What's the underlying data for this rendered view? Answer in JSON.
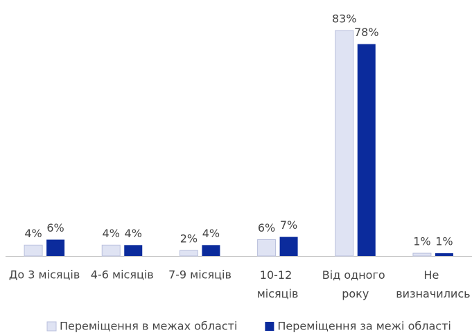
{
  "chart_data": {
    "type": "bar",
    "categories": [
      "До 3 місяців",
      "4-6 місяців",
      "7-9 місяців",
      "10-12 місяців",
      "Від одного року",
      "Не визначились"
    ],
    "series": [
      {
        "name": "Переміщення в межах області",
        "color": "#dfe3f3",
        "values": [
          4,
          4,
          2,
          6,
          83,
          1
        ],
        "value_labels": [
          "4%",
          "4%",
          "2%",
          "6%",
          "83%",
          "1%"
        ]
      },
      {
        "name": "Переміщення за межі області",
        "color": "#0b2b9c",
        "values": [
          6,
          4,
          4,
          7,
          78,
          1
        ],
        "value_labels": [
          "6%",
          "4%",
          "4%",
          "7%",
          "78%",
          "1%"
        ]
      }
    ],
    "legend": "bottom"
  }
}
